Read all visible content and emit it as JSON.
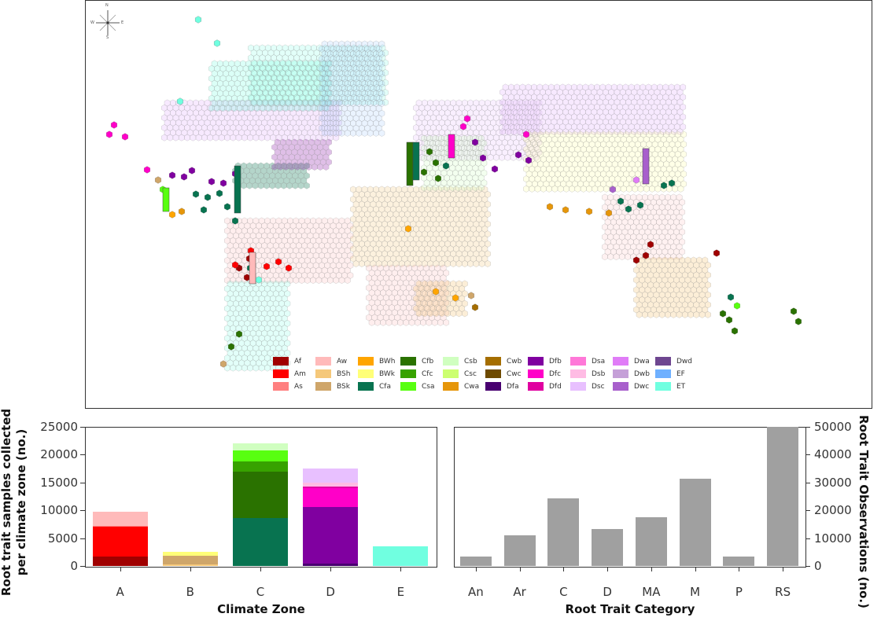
{
  "map": {
    "compass": {
      "n": "N",
      "s": "S",
      "e": "E",
      "w": "W"
    },
    "legend": [
      {
        "code": "Af",
        "color": "#a00000"
      },
      {
        "code": "Aw",
        "color": "#ffbaba"
      },
      {
        "code": "BWh",
        "color": "#ffa500"
      },
      {
        "code": "Cfb",
        "color": "#2a7200"
      },
      {
        "code": "Csb",
        "color": "#d0ffc0"
      },
      {
        "code": "Cwb",
        "color": "#a56e00"
      },
      {
        "code": "Dfb",
        "color": "#8000a0"
      },
      {
        "code": "Dsa",
        "color": "#ff78d8"
      },
      {
        "code": "Dwa",
        "color": "#e07cf7"
      },
      {
        "code": "Dwd",
        "color": "#6e4690"
      },
      {
        "code": "Am",
        "color": "#ff0000"
      },
      {
        "code": "BSh",
        "color": "#f5c87a"
      },
      {
        "code": "BWk",
        "color": "#ffff78"
      },
      {
        "code": "Cfc",
        "color": "#37a200"
      },
      {
        "code": "Csc",
        "color": "#ccff70"
      },
      {
        "code": "Cwc",
        "color": "#6e4a00"
      },
      {
        "code": "Dfc",
        "color": "#ff00c8"
      },
      {
        "code": "Dsb",
        "color": "#ffbce4"
      },
      {
        "code": "Dwb",
        "color": "#c5a0d8"
      },
      {
        "code": "EF",
        "color": "#6fb0ff"
      },
      {
        "code": "As",
        "color": "#ff8080"
      },
      {
        "code": "BSk",
        "color": "#cfa66a"
      },
      {
        "code": "Cfa",
        "color": "#087350"
      },
      {
        "code": "Csa",
        "color": "#58ff10"
      },
      {
        "code": "Cwa",
        "color": "#e6960a"
      },
      {
        "code": "Dfa",
        "color": "#480070"
      },
      {
        "code": "Dfd",
        "color": "#e000a0"
      },
      {
        "code": "Dsc",
        "color": "#e8c0ff"
      },
      {
        "code": "Dwc",
        "color": "#a860cc"
      },
      {
        "code": "ET",
        "color": "#70ffe0"
      }
    ]
  },
  "chart_data": [
    {
      "type": "bar",
      "stacked": true,
      "title": "",
      "xlabel": "Climate Zone",
      "ylabel": "Root trait samples collected per climate zone (no.)",
      "ylabel_lines": [
        "Root trait samples collected",
        "per climate zone (no.)"
      ],
      "ylim": [
        0,
        25000
      ],
      "yticks": [
        0,
        5000,
        10000,
        15000,
        20000,
        25000
      ],
      "categories": [
        "A",
        "B",
        "C",
        "D",
        "E"
      ],
      "bars": [
        {
          "category": "A",
          "segments": [
            {
              "name": "Af",
              "value": 1750,
              "color": "#a00000"
            },
            {
              "name": "Am",
              "value": 5250,
              "color": "#ff0000"
            },
            {
              "name": "As",
              "value": 200,
              "color": "#ff8080"
            },
            {
              "name": "Aw",
              "value": 2600,
              "color": "#ffbaba"
            }
          ]
        },
        {
          "category": "B",
          "segments": [
            {
              "name": "BSh",
              "value": 300,
              "color": "#f5c87a"
            },
            {
              "name": "BSk",
              "value": 1500,
              "color": "#cfa66a"
            },
            {
              "name": "BWk",
              "value": 700,
              "color": "#ffff78"
            }
          ]
        },
        {
          "category": "C",
          "segments": [
            {
              "name": "Cfa",
              "value": 8600,
              "color": "#087350"
            },
            {
              "name": "Cfb",
              "value": 8300,
              "color": "#2a7200"
            },
            {
              "name": "Cfc",
              "value": 1900,
              "color": "#37a200"
            },
            {
              "name": "Csa",
              "value": 1900,
              "color": "#58ff10"
            },
            {
              "name": "Csb",
              "value": 1300,
              "color": "#d0ffc0"
            }
          ]
        },
        {
          "category": "D",
          "segments": [
            {
              "name": "Dfa",
              "value": 400,
              "color": "#480070"
            },
            {
              "name": "Dfb",
              "value": 10200,
              "color": "#8000a0"
            },
            {
              "name": "Dfc",
              "value": 3400,
              "color": "#ff00c8"
            },
            {
              "name": "Dfd",
              "value": 200,
              "color": "#e000a0"
            },
            {
              "name": "Dsb",
              "value": 800,
              "color": "#ffbce4"
            },
            {
              "name": "Dsc",
              "value": 2500,
              "color": "#e8c0ff"
            }
          ]
        },
        {
          "category": "E",
          "segments": [
            {
              "name": "ET",
              "value": 3600,
              "color": "#70ffe0"
            }
          ]
        }
      ],
      "totals": {
        "A": 9800,
        "B": 2500,
        "C": 22000,
        "D": 17500,
        "E": 3600
      }
    },
    {
      "type": "bar",
      "title": "",
      "xlabel": "Root Trait Category",
      "ylabel": "Root Trait Observations (no.)",
      "yaxis_position": "right",
      "ylim": [
        0,
        55000
      ],
      "yticks": [
        0,
        10000,
        20000,
        30000,
        40000,
        50000
      ],
      "categories": [
        "An",
        "Ar",
        "C",
        "D",
        "MA",
        "M",
        "P",
        "RS"
      ],
      "values": [
        3500,
        11000,
        24300,
        13200,
        17500,
        31200,
        3300,
        50000
      ],
      "color": "#a0a0a0"
    }
  ]
}
